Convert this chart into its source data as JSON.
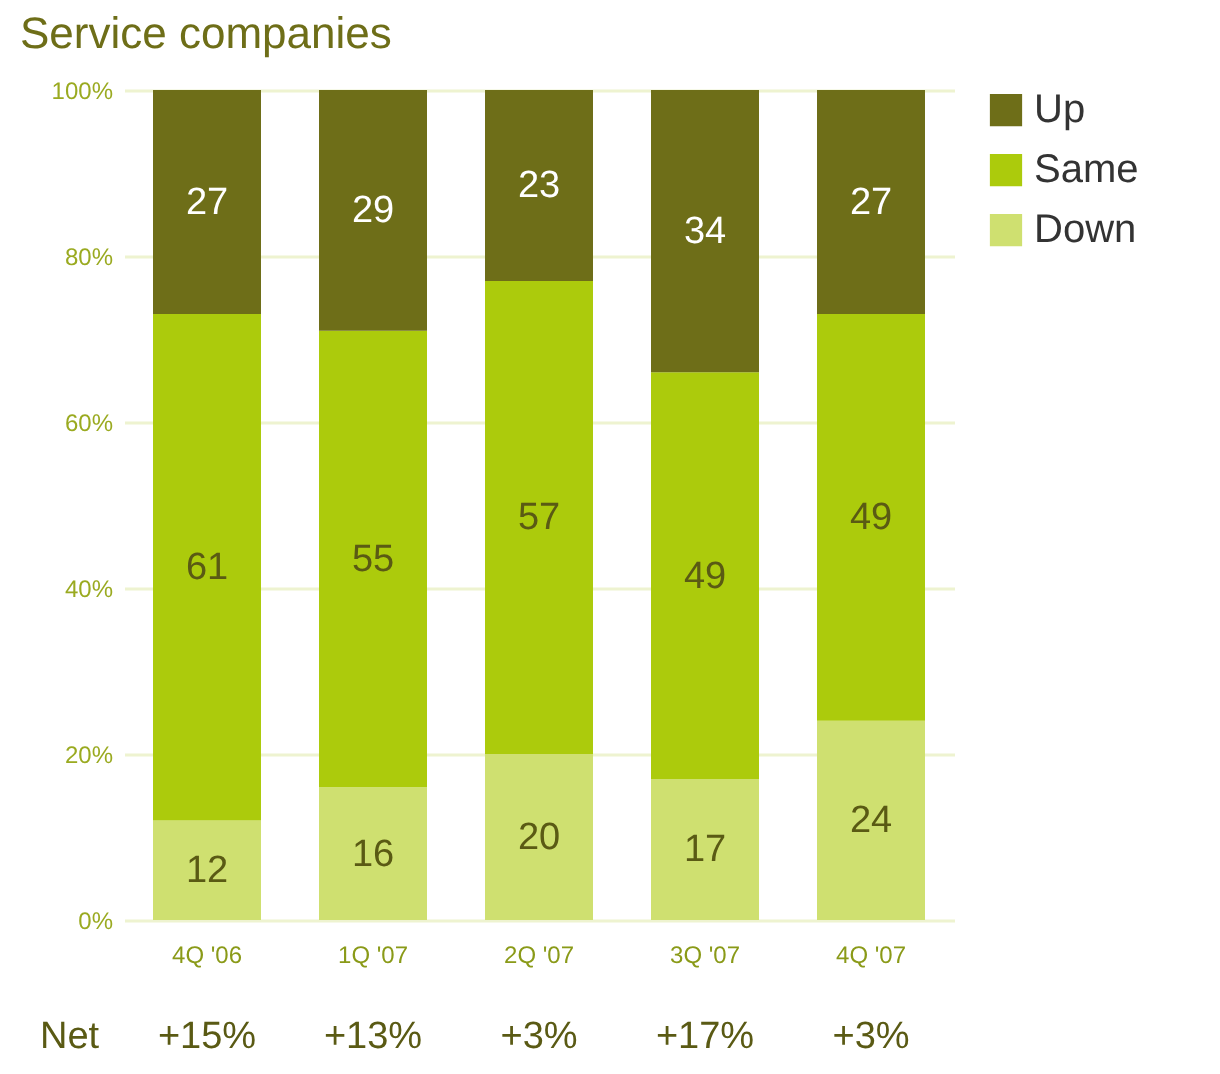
{
  "chart_data": {
    "type": "bar",
    "title": "Service companies",
    "stacked": true,
    "categories": [
      "4Q '06",
      "1Q '07",
      "2Q '07",
      "3Q '07",
      "4Q '07"
    ],
    "series": [
      {
        "name": "Down",
        "color": "#cfe070",
        "values": [
          12,
          16,
          20,
          17,
          24
        ]
      },
      {
        "name": "Same",
        "color": "#accb0c",
        "values": [
          61,
          55,
          57,
          49,
          49
        ]
      },
      {
        "name": "Up",
        "color": "#6e6e18",
        "values": [
          27,
          29,
          23,
          34,
          27
        ]
      }
    ],
    "ylim": [
      0,
      100
    ],
    "yticks": [
      {
        "value": 0,
        "label": "0%"
      },
      {
        "value": 20,
        "label": "20%"
      },
      {
        "value": 40,
        "label": "40%"
      },
      {
        "value": 60,
        "label": "60%"
      },
      {
        "value": 80,
        "label": "80%"
      },
      {
        "value": 100,
        "label": "100%"
      }
    ],
    "grid": "y",
    "legend": "top right",
    "data_labels": true,
    "annotations": [
      "Net",
      "+15%",
      "+13%",
      "+3%",
      "+17%",
      "+3%"
    ]
  }
}
